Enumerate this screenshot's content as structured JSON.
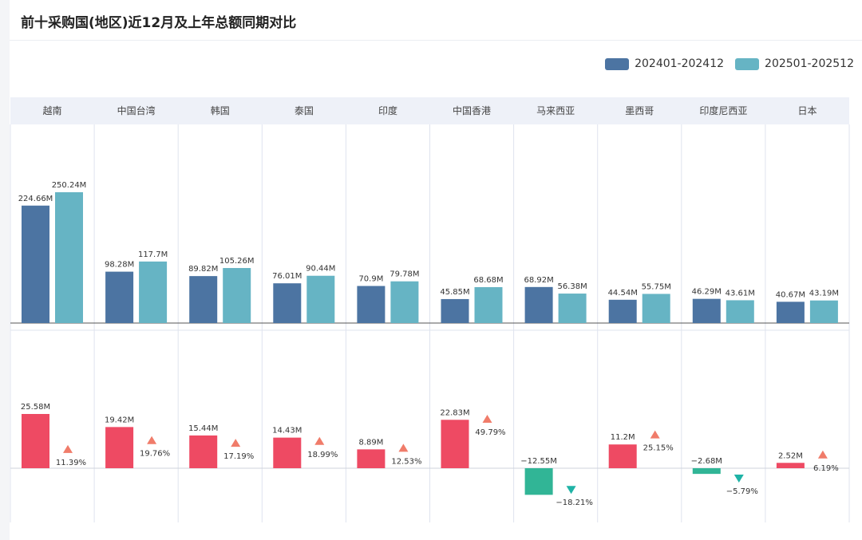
{
  "title": "前十采购国(地区)近12月及上年总额同期对比",
  "legend": {
    "series_a": "202401-202412",
    "series_b": "202501-202512"
  },
  "colors": {
    "series_a": "#4c74a2",
    "series_b": "#66b4c4",
    "increase_bar": "#ee4a63",
    "decrease_bar": "#31b596",
    "up_arrow": "#f07c6a",
    "down_arrow": "#1fb3a6",
    "header_band": "#eef1f8",
    "grid": "#dfe3ee"
  },
  "chart_data": [
    {
      "type": "bar",
      "title": "",
      "categories": [
        "越南",
        "中国台湾",
        "韩国",
        "泰国",
        "印度",
        "中国香港",
        "马来西亚",
        "墨西哥",
        "印度尼西亚",
        "日本"
      ],
      "series": [
        {
          "name": "202401-202412",
          "values": [
            224.66,
            98.28,
            89.82,
            76.01,
            70.9,
            45.85,
            68.92,
            44.54,
            46.29,
            40.67
          ],
          "labels": [
            "224.66M",
            "98.28M",
            "89.82M",
            "76.01M",
            "70.9M",
            "45.85M",
            "68.92M",
            "44.54M",
            "46.29M",
            "40.67M"
          ]
        },
        {
          "name": "202501-202512",
          "values": [
            250.24,
            117.7,
            105.26,
            90.44,
            79.78,
            68.68,
            56.38,
            55.75,
            43.61,
            43.19
          ],
          "labels": [
            "250.24M",
            "117.7M",
            "105.26M",
            "90.44M",
            "79.78M",
            "68.68M",
            "56.38M",
            "55.75M",
            "43.61M",
            "43.19M"
          ]
        }
      ],
      "unit": "M",
      "ylim": [
        0,
        250.24
      ]
    },
    {
      "type": "bar",
      "title": "",
      "categories": [
        "越南",
        "中国台湾",
        "韩国",
        "泰国",
        "印度",
        "中国香港",
        "马来西亚",
        "墨西哥",
        "印度尼西亚",
        "日本"
      ],
      "series": [
        {
          "values": [
            25.58,
            19.42,
            15.44,
            14.43,
            8.89,
            22.83,
            -12.55,
            11.2,
            -2.68,
            2.52
          ],
          "labels": [
            "25.58M",
            "19.42M",
            "15.44M",
            "14.43M",
            "8.89M",
            "22.83M",
            "−12.55M",
            "11.2M",
            "−2.68M",
            "2.52M"
          ]
        }
      ],
      "growth_pct": [
        11.39,
        19.76,
        17.19,
        18.99,
        12.53,
        49.79,
        -18.21,
        25.15,
        -5.79,
        6.19
      ],
      "growth_labels": [
        "11.39%",
        "19.76%",
        "17.19%",
        "18.99%",
        "12.53%",
        "49.79%",
        "−18.21%",
        "25.15%",
        "−5.79%",
        "6.19%"
      ],
      "unit": "M"
    }
  ]
}
